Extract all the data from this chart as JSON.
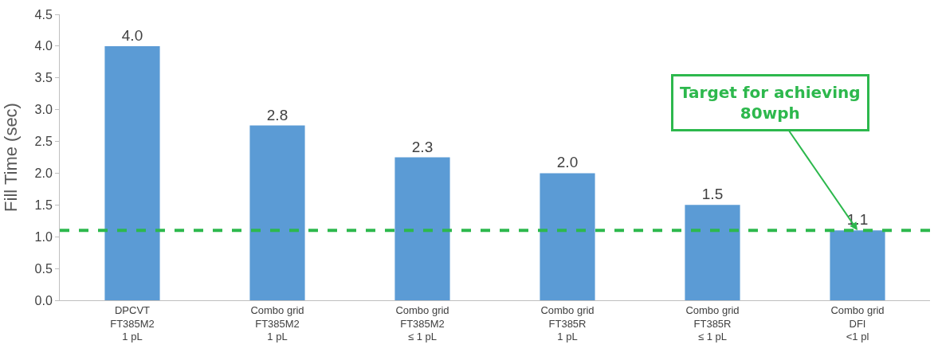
{
  "chart_data": {
    "type": "bar",
    "ylabel": "Fill Time (sec)",
    "categories": [
      "DPCVT\nFT385M2\n1 pL",
      "Combo grid\nFT385M2\n1 pL",
      "Combo grid\nFT385M2\n≤ 1 pL",
      "Combo grid\nFT385R\n1 pL",
      "Combo grid\nFT385R\n≤ 1 pL",
      "Combo grid\nDFI\n<1 pl"
    ],
    "values": [
      4.0,
      2.75,
      2.25,
      2.0,
      1.5,
      1.1
    ],
    "value_labels": [
      "4.0",
      "2.8",
      "2.3",
      "2.0",
      "1.5",
      "1.1"
    ],
    "color": "#5b9bd5",
    "ylim": [
      0,
      4.5
    ],
    "yticks": [
      {
        "value": 0,
        "label": "0.0"
      },
      {
        "value": 0.5,
        "label": "0.5"
      },
      {
        "value": 1,
        "label": "1.0"
      },
      {
        "value": 1.5,
        "label": "1.5"
      },
      {
        "value": 2,
        "label": "2.0"
      },
      {
        "value": 2.5,
        "label": "2.5"
      },
      {
        "value": 3,
        "label": "3.0"
      },
      {
        "value": 3.5,
        "label": "3.5"
      },
      {
        "value": 4,
        "label": "4.0"
      },
      {
        "value": 4.5,
        "label": "4.5"
      }
    ],
    "grid": false,
    "ref_lines": [
      {
        "axis": "y",
        "value": 1.1,
        "color": "#2db84d",
        "line_style": "dashed"
      }
    ],
    "annotations": [
      {
        "text": "Target for achieving\n80wph",
        "x": "Combo grid\nDFI\n<1 pl",
        "y": 1.1
      }
    ]
  }
}
